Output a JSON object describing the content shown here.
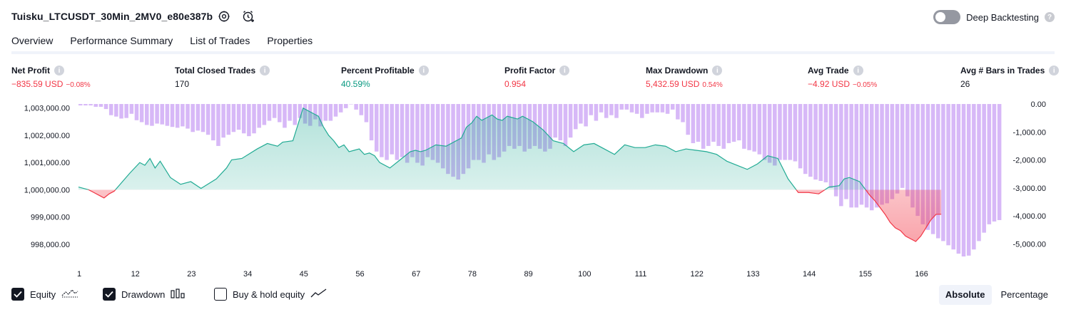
{
  "header": {
    "title": "Tuisku_LTCUSDT_30Min_2MV0_e80e387b",
    "icons": [
      "settings-icon",
      "alert-icon"
    ],
    "deep_backtesting": {
      "label": "Deep Backtesting",
      "enabled": false
    }
  },
  "tabs": [
    {
      "label": "Overview",
      "active": true
    },
    {
      "label": "Performance Summary",
      "active": false
    },
    {
      "label": "List of Trades",
      "active": false
    },
    {
      "label": "Properties",
      "active": false
    }
  ],
  "metrics": [
    {
      "label": "Net Profit",
      "value": "−835.59 USD",
      "pct": "−0.08%",
      "tone": "neg"
    },
    {
      "label": "Total Closed Trades",
      "value": "170",
      "pct": "",
      "tone": "neutral"
    },
    {
      "label": "Percent Profitable",
      "value": "40.59%",
      "pct": "",
      "tone": "pos"
    },
    {
      "label": "Profit Factor",
      "value": "0.954",
      "pct": "",
      "tone": "neg"
    },
    {
      "label": "Max Drawdown",
      "value": "5,432.59 USD",
      "pct": "0.54%",
      "tone": "neg"
    },
    {
      "label": "Avg Trade",
      "value": "−4.92 USD",
      "pct": "−0.05%",
      "tone": "neg"
    },
    {
      "label": "Avg # Bars in Trades",
      "value": "26",
      "pct": "",
      "tone": "neutral"
    }
  ],
  "legend": {
    "equity": {
      "label": "Equity",
      "checked": true
    },
    "drawdown": {
      "label": "Drawdown",
      "checked": true
    },
    "buy_hold": {
      "label": "Buy & hold equity",
      "checked": false
    }
  },
  "scale_toggle": {
    "options": [
      "Absolute",
      "Percentage"
    ],
    "active": "Absolute"
  },
  "colors": {
    "equity_up": "#22ab94",
    "equity_down": "#f23645",
    "drawdown_bar": "#d7b8f7",
    "drawdown_bar_dark": "#b9a9e3",
    "negative_text": "#f23645",
    "positive_text": "#089981"
  },
  "chart_data": {
    "type": "line",
    "title": "",
    "x_ticks": [
      1,
      12,
      23,
      34,
      45,
      56,
      67,
      78,
      89,
      100,
      111,
      122,
      133,
      144,
      155,
      166
    ],
    "y_left": {
      "ticks": [
        "1,003,000.00",
        "1,002,000.00",
        "1,001,000.00",
        "1,000,000.00",
        "999,000.00",
        "998,000.00"
      ],
      "tick_values": [
        1003000,
        1002000,
        1001000,
        1000000,
        999000,
        998000
      ],
      "range": [
        997500,
        1003150
      ],
      "baseline": 1000000
    },
    "y_right": {
      "ticks": [
        "0.00",
        "-1,000.00",
        "-2,000.00",
        "-3,000.00",
        "-4,000.00",
        "-5,000.00"
      ],
      "tick_values": [
        0,
        -1000,
        -2000,
        -3000,
        -4000,
        -5000
      ],
      "range": [
        -5500,
        0
      ]
    },
    "series": [
      {
        "name": "Equity",
        "x": [
          1,
          3,
          4,
          5,
          6,
          7,
          8,
          11,
          13,
          14,
          15,
          16,
          17,
          19,
          21,
          23,
          25,
          28,
          30,
          31,
          33,
          36,
          38,
          40,
          41,
          43,
          45,
          46,
          47,
          48,
          49,
          50,
          51,
          52,
          53,
          54,
          55,
          56,
          57,
          58,
          59,
          60,
          62,
          64,
          66,
          67,
          68,
          69,
          71,
          73,
          76,
          77,
          78,
          79,
          80,
          81,
          82,
          83,
          84,
          85,
          86,
          87,
          88,
          89,
          90,
          92,
          94,
          96,
          98,
          100,
          102,
          104,
          106,
          108,
          110,
          112,
          114,
          116,
          118,
          120,
          122,
          124,
          126,
          128,
          130,
          132,
          134,
          136,
          138,
          140,
          142,
          144,
          146,
          148,
          150,
          151,
          152,
          154,
          156,
          157,
          158,
          159,
          160,
          161,
          162,
          163,
          164,
          165,
          166,
          167,
          168,
          169,
          170
        ],
        "values": [
          1000100,
          1000000,
          999900,
          999800,
          999700,
          999850,
          999950,
          1000600,
          1001000,
          1000900,
          1001150,
          1000800,
          1001050,
          1000450,
          1000200,
          1000300,
          1000050,
          1000400,
          1000800,
          1001100,
          1001150,
          1001500,
          1001700,
          1001600,
          1001750,
          1001800,
          1003000,
          1002900,
          1002800,
          1002700,
          1002300,
          1002000,
          1001800,
          1001550,
          1001650,
          1001400,
          1001450,
          1001500,
          1001300,
          1001350,
          1001250,
          1001000,
          1000800,
          1001100,
          1001400,
          1001450,
          1001400,
          1001450,
          1001650,
          1001600,
          1001900,
          1002300,
          1002450,
          1002700,
          1002550,
          1002650,
          1002750,
          1002600,
          1002550,
          1002700,
          1002650,
          1002600,
          1002700,
          1002600,
          1002500,
          1002200,
          1001800,
          1001700,
          1001400,
          1001650,
          1001700,
          1001500,
          1001300,
          1001650,
          1001550,
          1001550,
          1001650,
          1001600,
          1001400,
          1001500,
          1001450,
          1001400,
          1001300,
          1001050,
          1000900,
          1000750,
          1000950,
          1001250,
          1001150,
          1000400,
          999900,
          999900,
          999850,
          1000100,
          1000150,
          1000400,
          1000450,
          1000300,
          999800,
          999600,
          999350,
          999100,
          998800,
          998600,
          998500,
          998300,
          998200,
          998100,
          998300,
          998600,
          998900,
          999100,
          999100
        ]
      },
      {
        "name": "Drawdown",
        "values": [
          -50,
          -50,
          -50,
          -100,
          -100,
          -180,
          -400,
          -450,
          -520,
          -500,
          -350,
          -580,
          -650,
          -750,
          -780,
          -700,
          -730,
          -780,
          -820,
          -850,
          -800,
          -880,
          -1000,
          -950,
          -1000,
          -1100,
          -1300,
          -1500,
          -1200,
          -1100,
          -1000,
          -920,
          -1050,
          -1150,
          -1050,
          -850,
          -750,
          -600,
          -500,
          -650,
          -850,
          -600,
          -750,
          -500,
          -700,
          -780,
          -550,
          -800,
          -600,
          -600,
          -450,
          -300,
          -150,
          0,
          -200,
          -400,
          -650,
          -1300,
          -1700,
          -1900,
          -2000,
          -1800,
          -2000,
          -1900,
          -2100,
          -1900,
          -2100,
          -2200,
          -1900,
          -2000,
          -2100,
          -2300,
          -2500,
          -2600,
          -2700,
          -2500,
          -2300,
          -2000,
          -2000,
          -2100,
          -1800,
          -2000,
          -1900,
          -1700,
          -1500,
          -1600,
          -1500,
          -1700,
          -1600,
          -1500,
          -1600,
          -1700,
          -1600,
          -1200,
          -1300,
          -1500,
          -1200,
          -900,
          -700,
          -800,
          -400,
          -600,
          -300,
          -500,
          -400,
          -500,
          -200,
          -200,
          -300,
          -350,
          -500,
          -350,
          -300,
          -300,
          -300,
          -350,
          -200,
          -550,
          -650,
          -1100,
          -1400,
          -1350,
          -1600,
          -1500,
          -1350,
          -1500,
          -1600,
          -1400,
          -1350,
          -1300,
          -1600,
          -1650,
          -1700,
          -1800,
          -2000,
          -2100,
          -2200,
          -2000,
          -2000,
          -2000,
          -2050,
          -2300,
          -2500,
          -2600,
          -2700,
          -2750,
          -2800,
          -3000,
          -3300,
          -3650,
          -3400,
          -3700,
          -3700,
          -3600,
          -3700,
          -3800,
          -3700,
          -3600,
          -3550,
          -3400,
          -3200,
          -3000,
          -3300,
          -3700,
          -4000,
          -4300,
          -4500,
          -4650,
          -4800,
          -4900,
          -5050,
          -5200,
          -5350,
          -5450,
          -5420,
          -5200,
          -4900,
          -4600,
          -4300,
          -4200,
          -4150
        ]
      }
    ]
  }
}
